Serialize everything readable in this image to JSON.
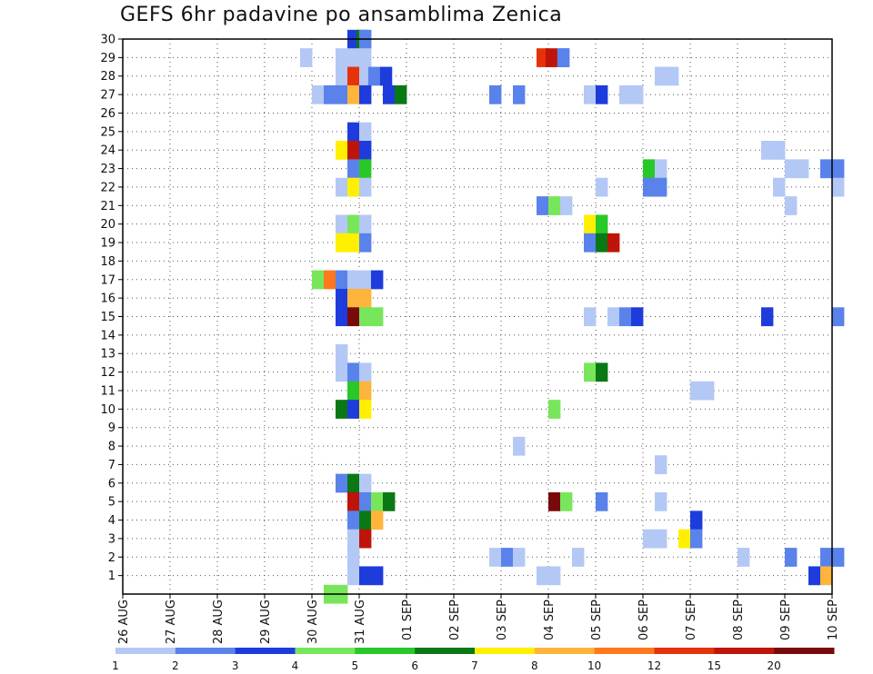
{
  "title": "GEFS 6hr padavine po ansamblima Zenica",
  "chart_data": {
    "type": "heatmap",
    "title": "GEFS 6hr padavine po ansamblima Zenica",
    "xlabel": "",
    "ylabel": "",
    "x_tick_labels": [
      "26 AUG",
      "27 AUG",
      "28 AUG",
      "29 AUG",
      "30 AUG",
      "31 AUG",
      "01 SEP",
      "02 SEP",
      "03 SEP",
      "04 SEP",
      "05 SEP",
      "06 SEP",
      "07 SEP",
      "08 SEP",
      "09 SEP",
      "10 SEP"
    ],
    "x_range_days": [
      0,
      15
    ],
    "y_tick_labels": [
      "1",
      "2",
      "3",
      "4",
      "5",
      "6",
      "7",
      "8",
      "9",
      "10",
      "11",
      "12",
      "13",
      "14",
      "15",
      "16",
      "17",
      "18",
      "19",
      "20",
      "21",
      "22",
      "23",
      "24",
      "25",
      "26",
      "27",
      "28",
      "29",
      "30"
    ],
    "y_range_members": [
      0,
      30
    ],
    "time_step_hours": 6,
    "grid": true,
    "legend_placement": "bottom",
    "color_scale": {
      "bin_edges": [
        "1",
        "2",
        "3",
        "4",
        "5",
        "6",
        "7",
        "8",
        "10",
        "12",
        "15",
        "20"
      ],
      "colors": [
        "#b4c8f5",
        "#5a82eb",
        "#1e3cdc",
        "#78e65a",
        "#28c828",
        "#0a7814",
        "#fff000",
        "#ffb43c",
        "#ff781e",
        "#e6320a",
        "#be140a",
        "#780a0a"
      ]
    },
    "cells_note": "[member, day offset from 26 AUG 00Z in 6-hour steps (0.25 day), color class index 0-11]",
    "cells": [
      [
        30,
        4.75,
        2
      ],
      [
        30,
        4.94,
        5
      ],
      [
        30,
        5.0,
        1
      ],
      [
        29,
        4.5,
        0
      ],
      [
        29,
        5.0,
        0
      ],
      [
        29,
        4.75,
        0
      ],
      [
        29,
        8.75,
        9
      ],
      [
        29,
        8.94,
        10
      ],
      [
        29,
        9.19,
        1
      ],
      [
        29,
        9.19,
        1
      ],
      [
        29,
        3.75,
        0
      ],
      [
        28,
        4.5,
        0
      ],
      [
        28,
        4.75,
        9
      ],
      [
        28,
        5.0,
        0
      ],
      [
        28,
        5.19,
        1
      ],
      [
        28,
        5.44,
        2
      ],
      [
        28,
        11.25,
        0
      ],
      [
        28,
        11.5,
        0
      ],
      [
        27,
        4.0,
        0
      ],
      [
        27,
        4.25,
        1
      ],
      [
        27,
        4.5,
        1
      ],
      [
        27,
        4.75,
        7
      ],
      [
        27,
        5.0,
        2
      ],
      [
        27,
        5.5,
        2
      ],
      [
        27,
        5.75,
        5
      ],
      [
        27,
        7.75,
        1
      ],
      [
        27,
        8.25,
        1
      ],
      [
        27,
        9.75,
        0
      ],
      [
        27,
        10.0,
        2
      ],
      [
        27,
        10.5,
        0
      ],
      [
        27,
        10.75,
        0
      ],
      [
        25,
        4.75,
        2
      ],
      [
        25,
        5.0,
        0
      ],
      [
        24,
        4.5,
        6
      ],
      [
        24,
        4.75,
        10
      ],
      [
        24,
        5.0,
        2
      ],
      [
        24,
        13.5,
        0
      ],
      [
        24,
        13.75,
        0
      ],
      [
        23,
        4.75,
        1
      ],
      [
        23,
        5.0,
        4
      ],
      [
        23,
        11.0,
        4
      ],
      [
        23,
        11.25,
        0
      ],
      [
        23,
        14.0,
        0
      ],
      [
        23,
        14.25,
        0
      ],
      [
        23,
        14.75,
        1
      ],
      [
        23,
        15.0,
        1
      ],
      [
        22,
        4.5,
        0
      ],
      [
        22,
        4.75,
        6
      ],
      [
        22,
        5.0,
        0
      ],
      [
        22,
        10.0,
        0
      ],
      [
        22,
        11.0,
        1
      ],
      [
        22,
        11.25,
        1
      ],
      [
        22,
        13.75,
        0
      ],
      [
        22,
        15.0,
        0
      ],
      [
        21,
        8.75,
        1
      ],
      [
        21,
        9.0,
        3
      ],
      [
        21,
        9.25,
        0
      ],
      [
        21,
        14.0,
        0
      ],
      [
        20,
        4.5,
        0
      ],
      [
        20,
        4.75,
        3
      ],
      [
        20,
        5.0,
        0
      ],
      [
        20,
        9.75,
        6
      ],
      [
        20,
        10.0,
        4
      ],
      [
        19,
        4.5,
        6
      ],
      [
        19,
        4.75,
        6
      ],
      [
        19,
        5.0,
        1
      ],
      [
        19,
        9.75,
        1
      ],
      [
        19,
        10.0,
        5
      ],
      [
        19,
        10.25,
        10
      ],
      [
        17,
        4.0,
        3
      ],
      [
        17,
        4.25,
        8
      ],
      [
        17,
        4.5,
        1
      ],
      [
        17,
        4.75,
        0
      ],
      [
        17,
        5.0,
        0
      ],
      [
        17,
        5.25,
        2
      ],
      [
        16,
        4.5,
        2
      ],
      [
        16,
        4.75,
        7
      ],
      [
        16,
        5.0,
        7
      ],
      [
        15,
        4.5,
        2
      ],
      [
        15,
        4.75,
        11
      ],
      [
        15,
        5.0,
        3
      ],
      [
        15,
        5.25,
        3
      ],
      [
        15,
        9.75,
        0
      ],
      [
        15,
        10.25,
        0
      ],
      [
        15,
        10.5,
        1
      ],
      [
        15,
        10.75,
        2
      ],
      [
        15,
        13.5,
        2
      ],
      [
        15,
        15.0,
        1
      ],
      [
        13,
        4.5,
        0
      ],
      [
        12,
        4.5,
        0
      ],
      [
        12,
        4.75,
        1
      ],
      [
        12,
        5.0,
        0
      ],
      [
        12,
        9.75,
        3
      ],
      [
        12,
        10.0,
        5
      ],
      [
        11,
        4.75,
        4
      ],
      [
        11,
        5.0,
        7
      ],
      [
        11,
        12.0,
        0
      ],
      [
        11,
        12.25,
        0
      ],
      [
        10,
        4.5,
        5
      ],
      [
        10,
        4.75,
        2
      ],
      [
        10,
        5.0,
        6
      ],
      [
        10,
        9.0,
        3
      ],
      [
        8,
        8.25,
        0
      ],
      [
        7,
        11.25,
        0
      ],
      [
        6,
        4.5,
        1
      ],
      [
        6,
        4.75,
        5
      ],
      [
        6,
        5.0,
        0
      ],
      [
        5,
        4.75,
        10
      ],
      [
        5,
        5.0,
        1
      ],
      [
        5,
        5.25,
        3
      ],
      [
        5,
        5.5,
        5
      ],
      [
        5,
        9.0,
        11
      ],
      [
        5,
        9.25,
        3
      ],
      [
        5,
        10.0,
        1
      ],
      [
        5,
        11.25,
        0
      ],
      [
        4,
        4.75,
        1
      ],
      [
        4,
        5.0,
        5
      ],
      [
        4,
        5.25,
        7
      ],
      [
        4,
        12.0,
        2
      ],
      [
        3,
        4.75,
        0
      ],
      [
        3,
        5.0,
        10
      ],
      [
        3,
        11.0,
        0
      ],
      [
        3,
        11.25,
        0
      ],
      [
        3,
        11.75,
        6
      ],
      [
        3,
        12.0,
        1
      ],
      [
        2,
        4.75,
        0
      ],
      [
        2,
        7.75,
        0
      ],
      [
        2,
        8.0,
        1
      ],
      [
        2,
        8.25,
        0
      ],
      [
        2,
        9.5,
        0
      ],
      [
        2,
        13.0,
        0
      ],
      [
        2,
        14.0,
        1
      ],
      [
        2,
        14.75,
        1
      ],
      [
        2,
        15.0,
        1
      ],
      [
        1,
        4.75,
        0
      ],
      [
        1,
        5.0,
        2
      ],
      [
        1,
        5.25,
        2
      ],
      [
        1,
        8.75,
        0
      ],
      [
        1,
        9.0,
        0
      ],
      [
        1,
        14.5,
        2
      ],
      [
        1,
        14.75,
        7
      ],
      [
        0,
        4.25,
        3
      ],
      [
        0,
        4.5,
        3
      ]
    ]
  }
}
